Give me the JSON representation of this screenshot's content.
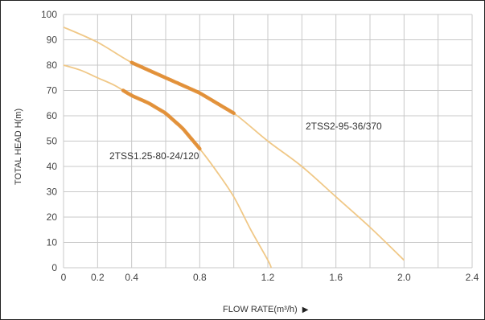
{
  "chart_data": {
    "type": "line",
    "xlabel": "FLOW RATE(m³/h)",
    "xlabel_arrow": "▶",
    "ylabel": "TOTAL  HEAD  H(m)",
    "xlim": [
      0,
      2.4
    ],
    "ylim": [
      0,
      100
    ],
    "x_ticks": [
      "0",
      "0.2",
      "0.4",
      "0.8",
      "1.2",
      "1.6",
      "2.0",
      "2.4"
    ],
    "x_tick_values": [
      0,
      0.2,
      0.4,
      0.8,
      1.2,
      1.6,
      2.0,
      2.4
    ],
    "x_grid_values": [
      0,
      0.2,
      0.4,
      0.6,
      0.8,
      1.0,
      1.2,
      1.4,
      1.6,
      1.8,
      2.0,
      2.2,
      2.4
    ],
    "y_ticks": [
      "0",
      "10",
      "20",
      "30",
      "40",
      "50",
      "60",
      "70",
      "80",
      "90",
      "100"
    ],
    "y_tick_values": [
      0,
      10,
      20,
      30,
      40,
      50,
      60,
      70,
      80,
      90,
      100
    ],
    "grid": true,
    "curve_color": "#f0c887",
    "highlight_color": "#e0892e",
    "series": [
      {
        "name": "2TSS1.25-80-24/120",
        "x": [
          0,
          0.1,
          0.2,
          0.3,
          0.4,
          0.5,
          0.6,
          0.7,
          0.8,
          0.9,
          1.0,
          1.1,
          1.2,
          1.22
        ],
        "y": [
          80,
          78,
          75,
          72,
          68,
          65,
          61,
          55,
          47,
          38,
          28,
          15,
          3,
          0
        ],
        "highlight": [
          0.35,
          0.8
        ]
      },
      {
        "name": "2TSS2-95-36/370",
        "x": [
          0,
          0.2,
          0.4,
          0.6,
          0.8,
          1.0,
          1.2,
          1.4,
          1.6,
          1.8,
          2.0
        ],
        "y": [
          95,
          89,
          81,
          75,
          69,
          61,
          50,
          40,
          28,
          16,
          3
        ],
        "highlight": [
          0.4,
          1.0
        ]
      }
    ]
  }
}
